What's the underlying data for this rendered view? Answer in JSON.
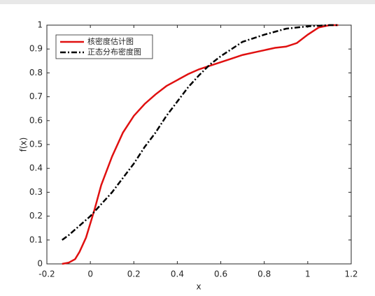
{
  "chart_data": {
    "type": "line",
    "xlabel": "x",
    "ylabel": "f(x)",
    "xlim": [
      -0.2,
      1.2
    ],
    "xticks": [
      -0.2,
      0,
      0.2,
      0.4,
      0.6,
      0.8,
      1,
      1.2
    ],
    "ylim": [
      0,
      1
    ],
    "yticks": [
      0,
      0.1,
      0.2,
      0.3,
      0.4,
      0.5,
      0.6,
      0.7,
      0.8,
      0.9,
      1
    ],
    "legend": "upper-left",
    "series": [
      {
        "name": "核密度估计图",
        "color": "#e01010",
        "line_style": "solid",
        "x": [
          -0.13,
          -0.1,
          -0.07,
          -0.05,
          -0.02,
          0,
          0.02,
          0.05,
          0.1,
          0.15,
          0.2,
          0.25,
          0.3,
          0.35,
          0.4,
          0.45,
          0.5,
          0.55,
          0.6,
          0.65,
          0.7,
          0.75,
          0.8,
          0.85,
          0.9,
          0.95,
          1,
          1.05,
          1.1,
          1.14
        ],
        "values": [
          0,
          0.005,
          0.02,
          0.05,
          0.11,
          0.17,
          0.23,
          0.33,
          0.45,
          0.55,
          0.62,
          0.67,
          0.71,
          0.745,
          0.77,
          0.795,
          0.815,
          0.83,
          0.845,
          0.86,
          0.875,
          0.885,
          0.895,
          0.905,
          0.91,
          0.925,
          0.96,
          0.99,
          1,
          1
        ]
      },
      {
        "name": "正态分布密度图",
        "color": "#000000",
        "line_style": "dashdot",
        "x": [
          -0.13,
          -0.1,
          -0.05,
          0,
          0.05,
          0.1,
          0.15,
          0.2,
          0.25,
          0.3,
          0.35,
          0.4,
          0.45,
          0.5,
          0.55,
          0.6,
          0.7,
          0.8,
          0.9,
          1,
          1.1,
          1.14
        ],
        "values": [
          0.1,
          0.12,
          0.16,
          0.2,
          0.25,
          0.3,
          0.36,
          0.42,
          0.49,
          0.55,
          0.62,
          0.68,
          0.74,
          0.79,
          0.835,
          0.87,
          0.93,
          0.96,
          0.985,
          0.995,
          1,
          1
        ]
      }
    ]
  }
}
